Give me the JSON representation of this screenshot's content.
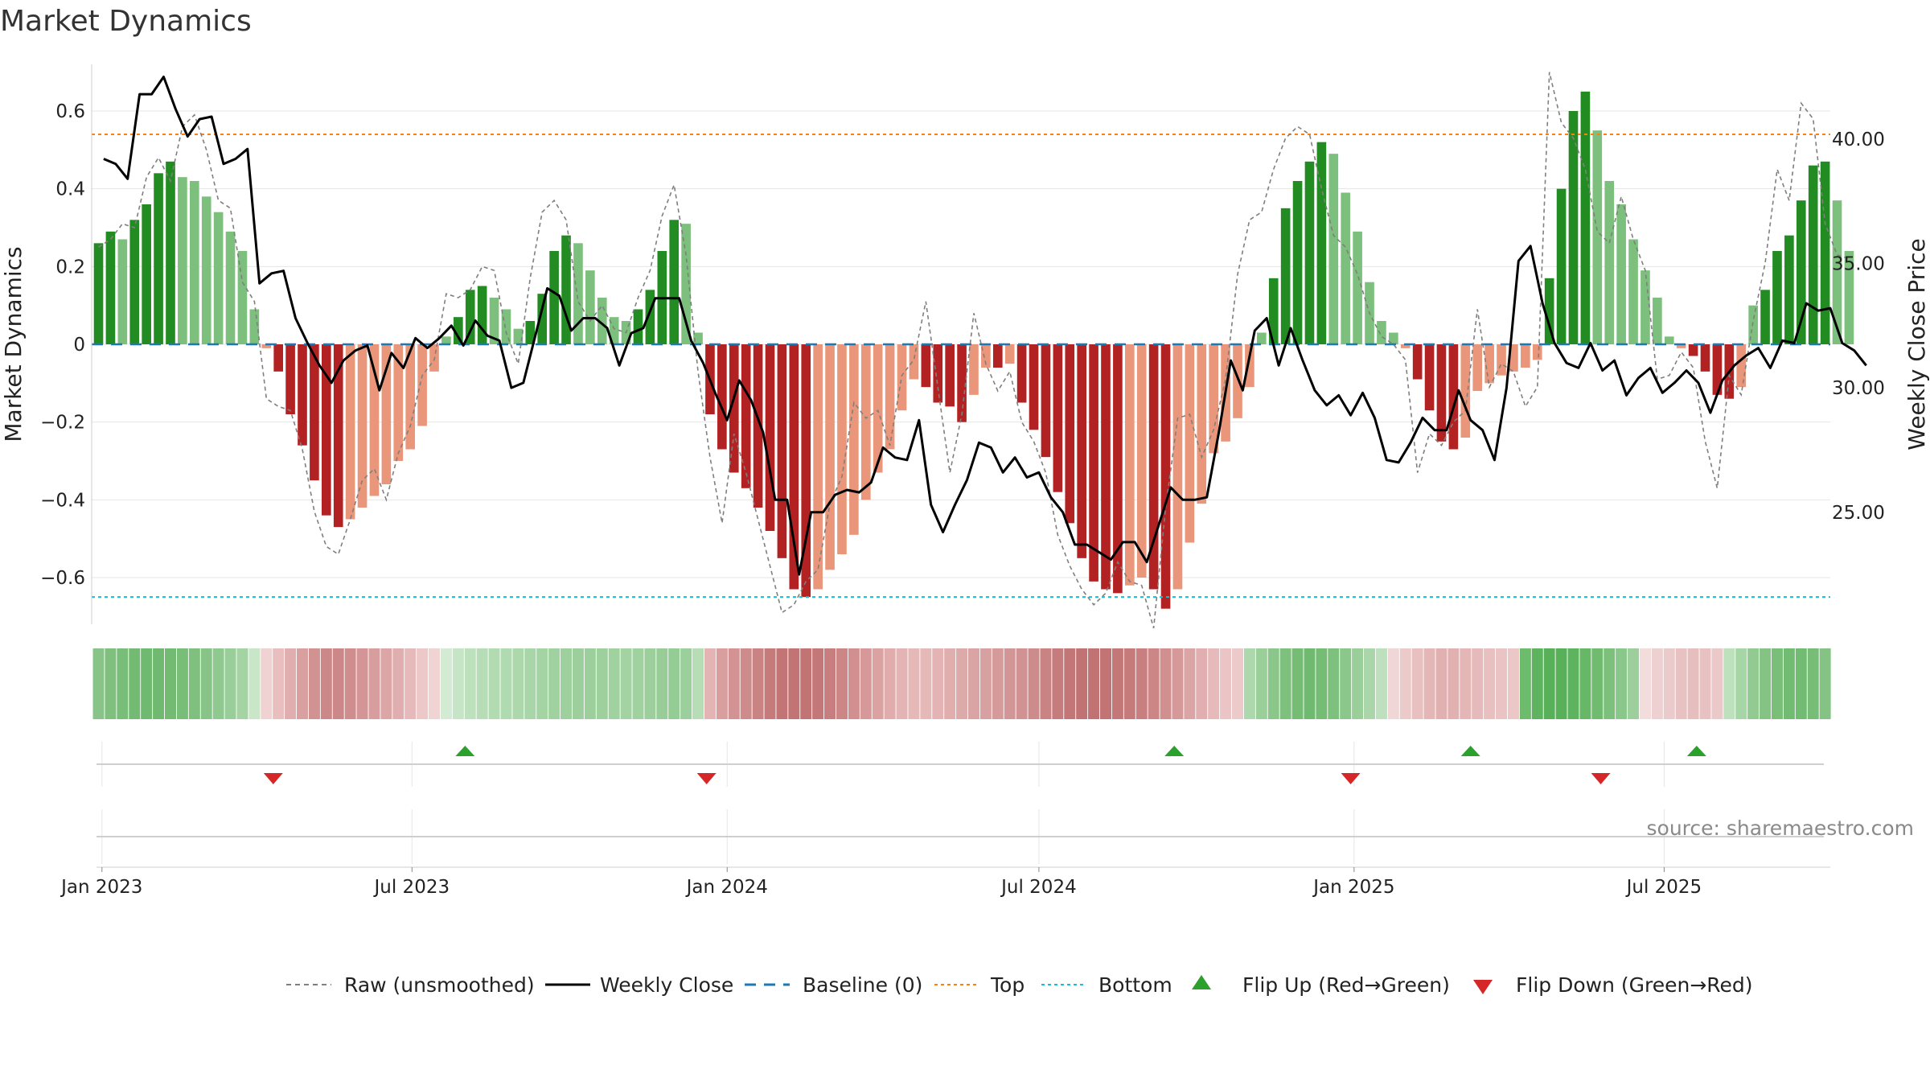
{
  "chart_data": {
    "type": "bar",
    "title": "Market Dynamics",
    "ylabel_left": "Market Dynamics",
    "ylabel_right": "Weekly Close Price",
    "ylim_left": [
      -0.72,
      0.72
    ],
    "ylim_right": [
      20.5,
      43.0
    ],
    "yticks_left": [
      "0.6",
      "0.4",
      "0.2",
      "0",
      "−0.2",
      "−0.4",
      "−0.6"
    ],
    "yticks_left_values": [
      0.6,
      0.4,
      0.2,
      0,
      -0.2,
      -0.4,
      -0.6
    ],
    "yticks_right": [
      "40.00",
      "35.00",
      "30.00",
      "25.00"
    ],
    "yticks_right_values": [
      40,
      35,
      30,
      25
    ],
    "x_range": [
      "2022-12-26",
      "2025-10-06"
    ],
    "xticks": [
      {
        "label": "Jan 2023",
        "date": "2023-01-01"
      },
      {
        "label": "Jul 2023",
        "date": "2023-07-01"
      },
      {
        "label": "Jan 2024",
        "date": "2024-01-01"
      },
      {
        "label": "Jul 2024",
        "date": "2024-07-01"
      },
      {
        "label": "Jan 2025",
        "date": "2025-01-01"
      },
      {
        "label": "Jul 2025",
        "date": "2025-07-01"
      }
    ],
    "bar_start_date": "2022-12-30",
    "bar_interval_days": 7,
    "top_level": 0.54,
    "bottom_level": -0.65,
    "baseline": 0,
    "colors": {
      "strong_up": "#228b22",
      "weak_up": "#7dbf7d",
      "strong_down": "#b22222",
      "weak_down": "#e9967a",
      "close_line": "#000000",
      "raw_line": "#7f7f7f",
      "baseline": "#1f77b4",
      "top": "#ff7f0e",
      "bottom": "#17becf",
      "flip_up": "#2ca02c",
      "flip_down": "#d62728"
    },
    "momentum": [
      0.26,
      0.29,
      0.27,
      0.32,
      0.36,
      0.44,
      0.47,
      0.43,
      0.42,
      0.38,
      0.34,
      0.29,
      0.24,
      0.09,
      -0.01,
      -0.07,
      -0.18,
      -0.26,
      -0.35,
      -0.44,
      -0.47,
      -0.45,
      -0.42,
      -0.39,
      -0.36,
      -0.3,
      -0.27,
      -0.21,
      -0.07,
      0.02,
      0.07,
      0.14,
      0.15,
      0.12,
      0.09,
      0.04,
      0.06,
      0.13,
      0.24,
      0.28,
      0.26,
      0.19,
      0.12,
      0.07,
      0.06,
      0.09,
      0.14,
      0.24,
      0.32,
      0.31,
      0.03,
      -0.18,
      -0.27,
      -0.33,
      -0.37,
      -0.42,
      -0.48,
      -0.55,
      -0.63,
      -0.65,
      -0.63,
      -0.58,
      -0.54,
      -0.49,
      -0.4,
      -0.33,
      -0.27,
      -0.17,
      -0.09,
      -0.11,
      -0.15,
      -0.16,
      -0.2,
      -0.13,
      -0.06,
      -0.06,
      -0.05,
      -0.15,
      -0.22,
      -0.29,
      -0.38,
      -0.46,
      -0.55,
      -0.61,
      -0.63,
      -0.64,
      -0.62,
      -0.6,
      -0.63,
      -0.68,
      -0.63,
      -0.51,
      -0.41,
      -0.28,
      -0.25,
      -0.19,
      -0.11,
      0.03,
      0.17,
      0.35,
      0.42,
      0.47,
      0.52,
      0.49,
      0.39,
      0.29,
      0.16,
      0.06,
      0.03,
      -0.01,
      -0.09,
      -0.17,
      -0.25,
      -0.27,
      -0.24,
      -0.12,
      -0.1,
      -0.08,
      -0.07,
      -0.06,
      -0.04,
      0.17,
      0.4,
      0.6,
      0.65,
      0.55,
      0.42,
      0.36,
      0.27,
      0.19,
      0.12,
      0.02,
      -0.01,
      -0.03,
      -0.07,
      -0.13,
      -0.14,
      -0.11,
      0.1,
      0.14,
      0.24,
      0.28,
      0.37,
      0.46,
      0.47,
      0.37,
      0.24
    ],
    "raw": [
      0.25,
      0.27,
      0.31,
      0.3,
      0.43,
      0.48,
      0.42,
      0.56,
      0.59,
      0.5,
      0.37,
      0.35,
      0.16,
      0.11,
      -0.14,
      -0.16,
      -0.17,
      -0.27,
      -0.43,
      -0.52,
      -0.54,
      -0.45,
      -0.35,
      -0.32,
      -0.4,
      -0.28,
      -0.21,
      -0.08,
      -0.04,
      0.13,
      0.12,
      0.14,
      0.2,
      0.19,
      0.03,
      -0.05,
      0.17,
      0.34,
      0.37,
      0.32,
      0.11,
      0.06,
      0.1,
      0.04,
      0.03,
      0.12,
      0.19,
      0.33,
      0.41,
      0.23,
      -0.07,
      -0.29,
      -0.46,
      -0.23,
      -0.33,
      -0.45,
      -0.57,
      -0.69,
      -0.67,
      -0.61,
      -0.58,
      -0.41,
      -0.34,
      -0.15,
      -0.19,
      -0.17,
      -0.26,
      -0.08,
      -0.04,
      0.11,
      -0.11,
      -0.33,
      -0.18,
      0.08,
      -0.05,
      -0.12,
      -0.07,
      -0.2,
      -0.25,
      -0.33,
      -0.49,
      -0.57,
      -0.63,
      -0.67,
      -0.64,
      -0.56,
      -0.61,
      -0.62,
      -0.73,
      -0.42,
      -0.19,
      -0.18,
      -0.29,
      -0.22,
      -0.09,
      0.18,
      0.32,
      0.34,
      0.45,
      0.53,
      0.56,
      0.54,
      0.4,
      0.28,
      0.25,
      0.18,
      0.08,
      0.02,
      0.0,
      -0.04,
      -0.33,
      -0.23,
      -0.26,
      -0.2,
      -0.17,
      0.09,
      -0.11,
      -0.05,
      -0.07,
      -0.16,
      -0.11,
      0.7,
      0.57,
      0.53,
      0.45,
      0.29,
      0.26,
      0.38,
      0.27,
      0.19,
      -0.09,
      -0.08,
      -0.02,
      -0.06,
      -0.25,
      -0.37,
      -0.08,
      -0.13,
      0.06,
      0.21,
      0.45,
      0.37,
      0.62,
      0.58,
      0.31,
      0.23,
      0.22
    ],
    "close": [
      39.2,
      39.0,
      38.4,
      41.8,
      41.8,
      42.5,
      41.2,
      40.1,
      40.8,
      40.9,
      39.0,
      39.2,
      39.6,
      34.2,
      34.6,
      34.7,
      32.8,
      31.8,
      30.9,
      30.2,
      31.1,
      31.5,
      31.7,
      29.9,
      31.4,
      30.8,
      32.0,
      31.6,
      32.0,
      32.5,
      31.7,
      32.7,
      32.1,
      31.9,
      30.0,
      30.2,
      32.1,
      34.0,
      33.7,
      32.3,
      32.8,
      32.8,
      32.4,
      30.9,
      32.2,
      32.4,
      33.6,
      33.6,
      33.6,
      31.9,
      31.0,
      29.8,
      28.7,
      30.3,
      29.5,
      28.2,
      25.5,
      25.5,
      22.5,
      25.0,
      25.0,
      25.7,
      25.9,
      25.8,
      26.2,
      27.6,
      27.2,
      27.1,
      28.7,
      25.3,
      24.2,
      25.3,
      26.3,
      27.8,
      27.6,
      26.6,
      27.2,
      26.4,
      26.6,
      25.6,
      25.0,
      23.7,
      23.7,
      23.4,
      23.1,
      23.8,
      23.8,
      23.0,
      24.5,
      26.0,
      25.5,
      25.5,
      25.6,
      28.2,
      31.1,
      29.9,
      32.3,
      32.8,
      30.9,
      32.4,
      31.1,
      29.9,
      29.3,
      29.7,
      28.9,
      29.8,
      28.8,
      27.1,
      27.0,
      27.8,
      28.8,
      28.3,
      28.3,
      29.9,
      28.7,
      28.3,
      27.1,
      30.0,
      35.1,
      35.7,
      33.4,
      31.8,
      31.0,
      30.8,
      31.8,
      30.7,
      31.1,
      29.7,
      30.4,
      30.8,
      29.8,
      30.2,
      30.7,
      30.2,
      29.0,
      30.3,
      30.9,
      31.3,
      31.6,
      30.8,
      31.9,
      31.8,
      33.4,
      33.1,
      33.2,
      31.8,
      31.5,
      30.9
    ],
    "close_dates_start": "2023-01-02",
    "close_interval_days": 7,
    "strip_colors": [
      "#88c488",
      "#7fc07f",
      "#78bd78",
      "#73ba73",
      "#70b970",
      "#70b970",
      "#73ba73",
      "#78bd78",
      "#7fc07f",
      "#88c488",
      "#90c990",
      "#99cd99",
      "#a4d3a4",
      "#c9e6c9",
      "#f0d2d2",
      "#e8bebe",
      "#e0aeae",
      "#d9a0a0",
      "#d19292",
      "#cc8888",
      "#cc8888",
      "#cf8d8d",
      "#d39595",
      "#d89e9e",
      "#dca6a6",
      "#e0aeae",
      "#e6baba",
      "#ecc8c8",
      "#f0d3d3",
      "#d3ebd3",
      "#c6e5c6",
      "#bde0bd",
      "#b6ddb6",
      "#b2dbb2",
      "#b0dab0",
      "#acd8ac",
      "#a8d6a8",
      "#a4d4a4",
      "#a0d2a0",
      "#9dd09d",
      "#9ccf9c",
      "#9ccf9c",
      "#9dd09d",
      "#a0d2a0",
      "#a3d3a3",
      "#a0d2a0",
      "#9ccf9c",
      "#98cd98",
      "#95cc95",
      "#9bcf9b",
      "#b7ddb7",
      "#e4b4b4",
      "#d99f9f",
      "#d39393",
      "#ce8b8b",
      "#ca8383",
      "#c67b7b",
      "#c37575",
      "#c27373",
      "#c27373",
      "#c47777",
      "#c87e7e",
      "#cc8686",
      "#d18f8f",
      "#d69898",
      "#dba2a2",
      "#e0acac",
      "#e4b4b4",
      "#e6b9b9",
      "#e6b9b9",
      "#e4b4b4",
      "#e1aeae",
      "#ddaaaa",
      "#daa4a4",
      "#d8a1a1",
      "#d59b9b",
      "#d29696",
      "#d09292",
      "#cd8b8b",
      "#c98383",
      "#c67c7c",
      "#c37676",
      "#c17272",
      "#c17272",
      "#c27373",
      "#c47777",
      "#c67b7b",
      "#c97f7f",
      "#cc8686",
      "#d18f8f",
      "#d69999",
      "#dca5a5",
      "#e1afaf",
      "#e6baba",
      "#ebc5c5",
      "#eccaca",
      "#add8ad",
      "#9acf9a",
      "#8bc78b",
      "#7ec07e",
      "#75bc75",
      "#70b970",
      "#75bc75",
      "#7ec07e",
      "#8bc78b",
      "#9acf9a",
      "#aad6aa",
      "#bfe0bf",
      "#f0d6d6",
      "#eccaca",
      "#e8c0c0",
      "#e4b6b6",
      "#e1b0b0",
      "#e1b0b0",
      "#e4b6b6",
      "#e6baba",
      "#e8c0c0",
      "#eac4c4",
      "#ebc7c7",
      "#6dbb6d",
      "#5eb35e",
      "#58b058",
      "#58b058",
      "#5eb35e",
      "#66b766",
      "#70bb70",
      "#7cc07c",
      "#8ac78a",
      "#9ccf9c",
      "#f2dcdc",
      "#eed0d0",
      "#eacaca",
      "#e8c2c2",
      "#e6bebe",
      "#e8c2c2",
      "#ecc9c9",
      "#bde0bd",
      "#a6d5a6",
      "#92ca92",
      "#84c384",
      "#79be79",
      "#72bb72",
      "#72bb72",
      "#77bd77",
      "#84c384"
    ],
    "flip_up_dates": [
      "2023-08-01",
      "2024-09-18",
      "2025-03-10",
      "2025-07-20"
    ],
    "flip_down_dates": [
      "2023-04-11",
      "2023-12-20",
      "2024-12-30",
      "2025-05-25"
    ]
  },
  "legend": {
    "raw": "Raw (unsmoothed)",
    "close": "Weekly Close",
    "baseline": "Baseline (0)",
    "top": "Top",
    "bottom": "Bottom",
    "flip_up": "Flip Up (Red→Green)",
    "flip_down": "Flip Down (Green→Red)"
  },
  "source": "source: sharemaestro.com"
}
